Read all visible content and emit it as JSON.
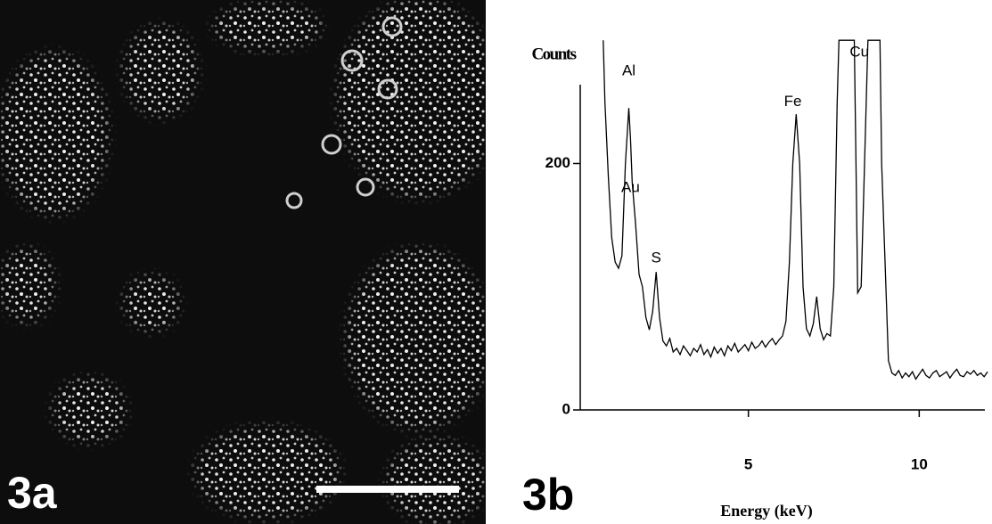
{
  "panel_a": {
    "label": "3a"
  },
  "panel_b": {
    "label": "3b"
  },
  "chart_data": {
    "type": "line",
    "y_label": "Counts",
    "x_label": "Energy (keV)",
    "x": [
      0.75,
      0.8,
      0.9,
      1.0,
      1.1,
      1.2,
      1.3,
      1.4,
      1.5,
      1.55,
      1.6,
      1.7,
      1.8,
      1.9,
      2.0,
      2.1,
      2.2,
      2.3,
      2.4,
      2.5,
      2.6,
      2.7,
      2.8,
      2.9,
      3.0,
      3.1,
      3.2,
      3.3,
      3.4,
      3.5,
      3.6,
      3.7,
      3.8,
      3.9,
      4.0,
      4.1,
      4.2,
      4.3,
      4.4,
      4.5,
      4.6,
      4.7,
      4.8,
      4.9,
      5.0,
      5.1,
      5.2,
      5.3,
      5.4,
      5.5,
      5.6,
      5.7,
      5.8,
      5.9,
      6.0,
      6.1,
      6.2,
      6.3,
      6.4,
      6.5,
      6.6,
      6.7,
      6.8,
      6.9,
      7.0,
      7.1,
      7.2,
      7.3,
      7.4,
      7.5,
      7.6,
      7.65,
      8.1,
      8.15,
      8.2,
      8.3,
      8.4,
      8.5,
      8.85,
      8.9,
      9.0,
      9.1,
      9.2,
      9.3,
      9.4,
      9.5,
      9.6,
      9.7,
      9.8,
      9.9,
      10.0,
      10.1,
      10.2,
      10.3,
      10.4,
      10.5,
      10.6,
      10.7,
      10.8,
      10.9,
      11.0,
      11.1,
      11.2,
      11.3,
      11.4,
      11.5,
      11.6,
      11.7,
      11.8,
      11.9,
      12.0
    ],
    "values": [
      300,
      250,
      190,
      140,
      120,
      115,
      125,
      200,
      245,
      220,
      185,
      150,
      110,
      100,
      75,
      65,
      80,
      112,
      75,
      56,
      52,
      58,
      47,
      50,
      45,
      52,
      48,
      44,
      50,
      47,
      53,
      45,
      49,
      43,
      51,
      46,
      50,
      44,
      52,
      48,
      54,
      47,
      50,
      53,
      48,
      55,
      50,
      52,
      56,
      51,
      55,
      58,
      53,
      57,
      60,
      72,
      120,
      200,
      240,
      200,
      100,
      66,
      60,
      70,
      92,
      66,
      57,
      62,
      60,
      100,
      250,
      300,
      300,
      200,
      95,
      100,
      200,
      300,
      300,
      200,
      120,
      40,
      30,
      28,
      32,
      26,
      30,
      27,
      31,
      25,
      29,
      33,
      28,
      26,
      30,
      32,
      27,
      29,
      31,
      26,
      30,
      33,
      28,
      27,
      31,
      29,
      32,
      28,
      30,
      27,
      31
    ],
    "color": "#000000",
    "xlim": [
      0,
      12
    ],
    "ylim": [
      0,
      264
    ],
    "xticks": [
      5,
      10
    ],
    "yticks": [
      0,
      200
    ],
    "annotations": [
      {
        "text": "Al",
        "x": 1.5,
        "y": 275
      },
      {
        "text": "Au",
        "x": 1.55,
        "y": 180
      },
      {
        "text": "S",
        "x": 2.3,
        "y": 123
      },
      {
        "text": "Fe",
        "x": 6.3,
        "y": 250
      },
      {
        "text": "Cu",
        "x": 8.25,
        "y": 290
      }
    ]
  }
}
